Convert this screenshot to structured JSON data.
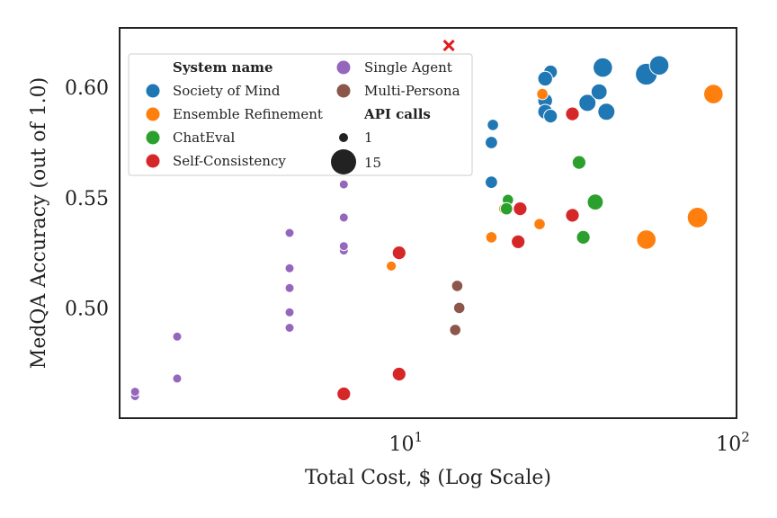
{
  "chart_data": {
    "type": "scatter",
    "title": "",
    "xlabel": "Total Cost, $ (Log Scale)",
    "ylabel": "MedQA Accuracy (out of 1.0)",
    "xscale": "log",
    "xlim": [
      1.3,
      100
    ],
    "ylim": [
      0.45,
      0.627
    ],
    "xticks": [
      {
        "value": 10,
        "base": "10",
        "exp": "1"
      },
      {
        "value": 100,
        "base": "10",
        "exp": "2"
      }
    ],
    "yticks": [
      {
        "value": 0.5,
        "label": "0.50"
      },
      {
        "value": 0.55,
        "label": "0.55"
      },
      {
        "value": 0.6,
        "label": "0.60"
      }
    ],
    "grid": false,
    "legend_placement": "top-left",
    "legend_title": "System name",
    "size_title": "API calls",
    "size_entries": [
      {
        "label": "1",
        "calls": 1
      },
      {
        "label": "15",
        "calls": 15
      }
    ],
    "series": [
      {
        "name": "Society of Mind",
        "color": "#1f77b4",
        "points": [
          {
            "x": 18.0,
            "y": 0.583,
            "calls": 3
          },
          {
            "x": 17.8,
            "y": 0.575,
            "calls": 4
          },
          {
            "x": 17.8,
            "y": 0.557,
            "calls": 4
          },
          {
            "x": 27.0,
            "y": 0.607,
            "calls": 5
          },
          {
            "x": 26.0,
            "y": 0.604,
            "calls": 6
          },
          {
            "x": 26.0,
            "y": 0.594,
            "calls": 6
          },
          {
            "x": 26.0,
            "y": 0.589,
            "calls": 6
          },
          {
            "x": 27.0,
            "y": 0.587,
            "calls": 5
          },
          {
            "x": 35.0,
            "y": 0.593,
            "calls": 8
          },
          {
            "x": 38.0,
            "y": 0.598,
            "calls": 7
          },
          {
            "x": 40.0,
            "y": 0.589,
            "calls": 8
          },
          {
            "x": 39.0,
            "y": 0.609,
            "calls": 10
          },
          {
            "x": 53.0,
            "y": 0.606,
            "calls": 12
          },
          {
            "x": 58.0,
            "y": 0.61,
            "calls": 10
          }
        ]
      },
      {
        "name": "Ensemble Refinement",
        "color": "#ff7f0e",
        "points": [
          {
            "x": 25.5,
            "y": 0.597,
            "calls": 3
          },
          {
            "x": 19.5,
            "y": 0.545,
            "calls": 3
          },
          {
            "x": 25.0,
            "y": 0.538,
            "calls": 3
          },
          {
            "x": 17.8,
            "y": 0.532,
            "calls": 3
          },
          {
            "x": 8.8,
            "y": 0.519,
            "calls": 2
          },
          {
            "x": 53.0,
            "y": 0.531,
            "calls": 10
          },
          {
            "x": 76.0,
            "y": 0.541,
            "calls": 11
          },
          {
            "x": 85.0,
            "y": 0.597,
            "calls": 10
          }
        ]
      },
      {
        "name": "ChatEval",
        "color": "#2ca02c",
        "points": [
          {
            "x": 20.0,
            "y": 0.549,
            "calls": 3
          },
          {
            "x": 19.8,
            "y": 0.545,
            "calls": 4
          },
          {
            "x": 22.0,
            "y": 0.545,
            "calls": 4
          },
          {
            "x": 33.0,
            "y": 0.566,
            "calls": 5
          },
          {
            "x": 37.0,
            "y": 0.548,
            "calls": 7
          },
          {
            "x": 34.0,
            "y": 0.532,
            "calls": 5
          }
        ]
      },
      {
        "name": "Self-Consistency",
        "color": "#d62728",
        "points": [
          {
            "x": 6.3,
            "y": 0.461,
            "calls": 5
          },
          {
            "x": 9.3,
            "y": 0.47,
            "calls": 5
          },
          {
            "x": 9.3,
            "y": 0.525,
            "calls": 5
          },
          {
            "x": 21.5,
            "y": 0.53,
            "calls": 5
          },
          {
            "x": 21.8,
            "y": 0.545,
            "calls": 5
          },
          {
            "x": 31.5,
            "y": 0.542,
            "calls": 5
          },
          {
            "x": 31.5,
            "y": 0.588,
            "calls": 5
          }
        ]
      },
      {
        "name": "Single Agent",
        "color": "#9467bd",
        "points": [
          {
            "x": 1.45,
            "y": 0.46,
            "calls": 1
          },
          {
            "x": 1.45,
            "y": 0.462,
            "calls": 1
          },
          {
            "x": 1.95,
            "y": 0.468,
            "calls": 1
          },
          {
            "x": 1.95,
            "y": 0.487,
            "calls": 1
          },
          {
            "x": 4.3,
            "y": 0.491,
            "calls": 1
          },
          {
            "x": 4.3,
            "y": 0.498,
            "calls": 1
          },
          {
            "x": 4.3,
            "y": 0.509,
            "calls": 1
          },
          {
            "x": 4.3,
            "y": 0.518,
            "calls": 1
          },
          {
            "x": 4.3,
            "y": 0.534,
            "calls": 1
          },
          {
            "x": 6.3,
            "y": 0.526,
            "calls": 1
          },
          {
            "x": 6.3,
            "y": 0.528,
            "calls": 1
          },
          {
            "x": 6.3,
            "y": 0.541,
            "calls": 1
          },
          {
            "x": 6.3,
            "y": 0.556,
            "calls": 1
          }
        ]
      },
      {
        "name": "Multi-Persona",
        "color": "#8c564b",
        "points": [
          {
            "x": 14.0,
            "y": 0.51,
            "calls": 3
          },
          {
            "x": 14.2,
            "y": 0.5,
            "calls": 3
          },
          {
            "x": 13.8,
            "y": 0.49,
            "calls": 3
          }
        ]
      }
    ],
    "annotations": [
      {
        "marker": "x",
        "color": "#e41a1c",
        "x": 13.2,
        "y": 0.619
      }
    ]
  }
}
